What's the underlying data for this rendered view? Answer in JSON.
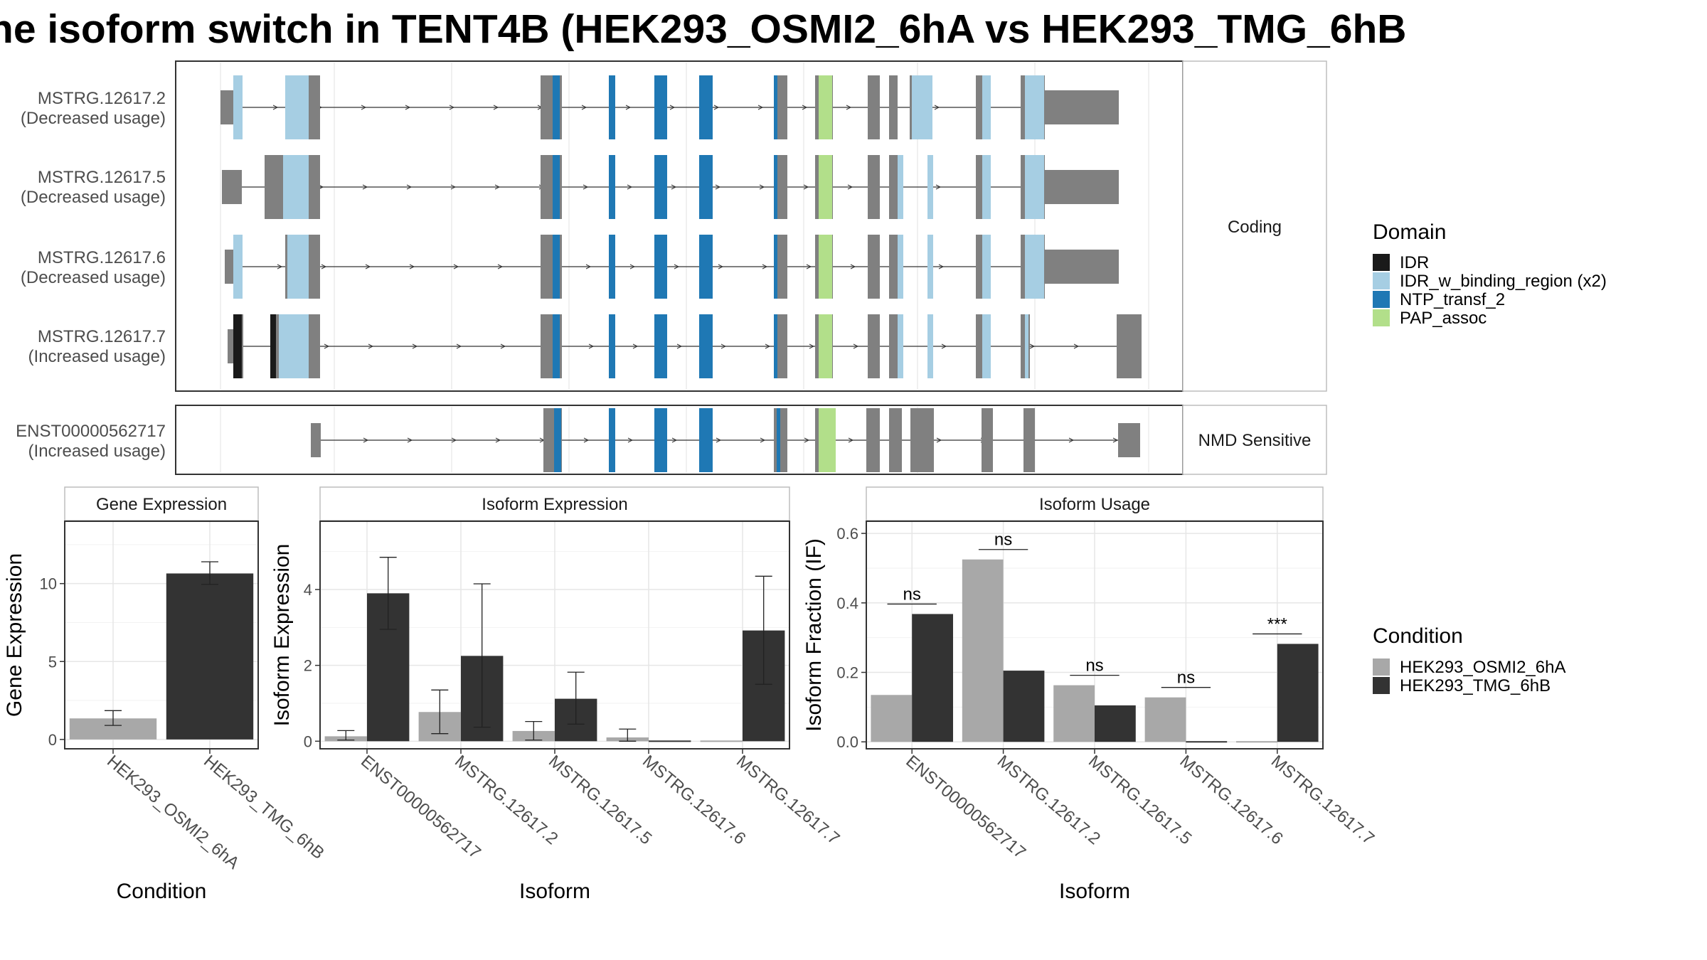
{
  "title": "ne isoform switch in TENT4B (HEK293_OSMI2_6hA vs HEK293_TMG_6hB",
  "colors": {
    "exon": "#808080",
    "IDR": "#1a1a1a",
    "IDR_w_binding_region": "#a6cee3",
    "NTP_transf_2": "#1f78b4",
    "PAP_assoc": "#b2df8a",
    "cond_A": "#a8a8a8",
    "cond_B": "#333333"
  },
  "structure": {
    "coding_strip": "Coding",
    "nmd_strip": "NMD Sensitive",
    "transcripts": [
      {
        "name": "MSTRG.12617.2",
        "usage": "(Decreased usage)"
      },
      {
        "name": "MSTRG.12617.5",
        "usage": "(Decreased usage)"
      },
      {
        "name": "MSTRG.12617.6",
        "usage": "(Decreased usage)"
      },
      {
        "name": "MSTRG.12617.7",
        "usage": "(Increased usage)"
      },
      {
        "name": "ENST00000562717",
        "usage": "(Increased usage)"
      }
    ]
  },
  "legend_domain": {
    "title": "Domain",
    "items": [
      {
        "label": "IDR",
        "color": "#1a1a1a"
      },
      {
        "label": "IDR_w_binding_region (x2)",
        "color": "#a6cee3"
      },
      {
        "label": "NTP_transf_2",
        "color": "#1f78b4"
      },
      {
        "label": "PAP_assoc",
        "color": "#b2df8a"
      }
    ]
  },
  "legend_condition": {
    "title": "Condition",
    "items": [
      {
        "label": "HEK293_OSMI2_6hA",
        "color": "#a8a8a8"
      },
      {
        "label": "HEK293_TMG_6hB",
        "color": "#333333"
      }
    ]
  },
  "chart_data": [
    {
      "type": "bar",
      "strip": "Gene Expression",
      "xlabel": "Condition",
      "ylabel": "Gene Expression",
      "ylim": [
        -0.6,
        14.0
      ],
      "yticks": [
        0,
        5,
        10
      ],
      "categories": [
        "HEK293_OSMI2_6hA",
        "HEK293_TMG_6hB"
      ],
      "series": [
        {
          "name": "HEK293_OSMI2_6hA",
          "values": [
            1.35,
            null
          ],
          "err_low": [
            0.9,
            null
          ],
          "err_high": [
            1.85,
            null
          ]
        },
        {
          "name": "HEK293_TMG_6hB",
          "values": [
            null,
            10.65
          ],
          "err_low": [
            null,
            9.95
          ],
          "err_high": [
            null,
            11.4
          ]
        }
      ]
    },
    {
      "type": "bar",
      "strip": "Isoform Expression",
      "xlabel": "Isoform",
      "ylabel": "Isoform Expression",
      "ylim": [
        -0.2,
        5.8
      ],
      "yticks": [
        0,
        2,
        4
      ],
      "categories": [
        "ENST00000562717",
        "MSTRG.12617.2",
        "MSTRG.12617.5",
        "MSTRG.12617.6",
        "MSTRG.12617.7"
      ],
      "series": [
        {
          "name": "HEK293_OSMI2_6hA",
          "values": [
            0.13,
            0.77,
            0.27,
            0.1,
            0.0
          ],
          "err_low": [
            0.03,
            0.2,
            0.03,
            0.0,
            null
          ],
          "err_high": [
            0.28,
            1.35,
            0.52,
            0.32,
            null
          ]
        },
        {
          "name": "HEK293_TMG_6hB",
          "values": [
            3.9,
            2.25,
            1.12,
            0.0,
            2.92
          ],
          "err_low": [
            2.95,
            0.37,
            0.45,
            null,
            1.5
          ],
          "err_high": [
            4.85,
            4.15,
            1.82,
            null,
            4.35
          ]
        }
      ]
    },
    {
      "type": "bar",
      "strip": "Isoform Usage",
      "xlabel": "Isoform",
      "ylabel": "Isoform Fraction (IF)",
      "ylim": [
        -0.02,
        0.635
      ],
      "yticks": [
        0.0,
        0.2,
        0.4,
        0.6
      ],
      "tick_format": "1",
      "categories": [
        "ENST00000562717",
        "MSTRG.12617.2",
        "MSTRG.12617.5",
        "MSTRG.12617.6",
        "MSTRG.12617.7"
      ],
      "series": [
        {
          "name": "HEK293_OSMI2_6hA",
          "values": [
            0.135,
            0.525,
            0.163,
            0.128,
            0.0
          ]
        },
        {
          "name": "HEK293_TMG_6hB",
          "values": [
            0.368,
            0.205,
            0.105,
            0.0,
            0.282
          ]
        }
      ],
      "significance": [
        "ns",
        "ns",
        "ns",
        "ns",
        "***"
      ]
    }
  ]
}
